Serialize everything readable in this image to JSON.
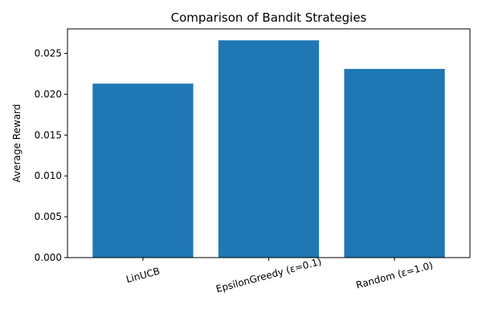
{
  "chart_data": {
    "type": "bar",
    "title": "Comparison of Bandit Strategies",
    "xlabel": "",
    "ylabel": "Average Reward",
    "categories": [
      "LinUCB",
      "EpsilonGreedy (ε=0.1)",
      "Random (ε=1.0)"
    ],
    "values": [
      0.0213,
      0.0266,
      0.0231
    ],
    "ylim": [
      0,
      0.028
    ],
    "yticks": [
      0.0,
      0.005,
      0.01,
      0.015,
      0.02,
      0.025
    ],
    "ytick_labels": [
      "0.000",
      "0.005",
      "0.010",
      "0.015",
      "0.020",
      "0.025"
    ],
    "grid": false,
    "legend": "none",
    "xtick_rotation": "rotated",
    "colors": {
      "bar": "#1f77b4",
      "axes": "#000000",
      "background": "#ffffff"
    }
  }
}
